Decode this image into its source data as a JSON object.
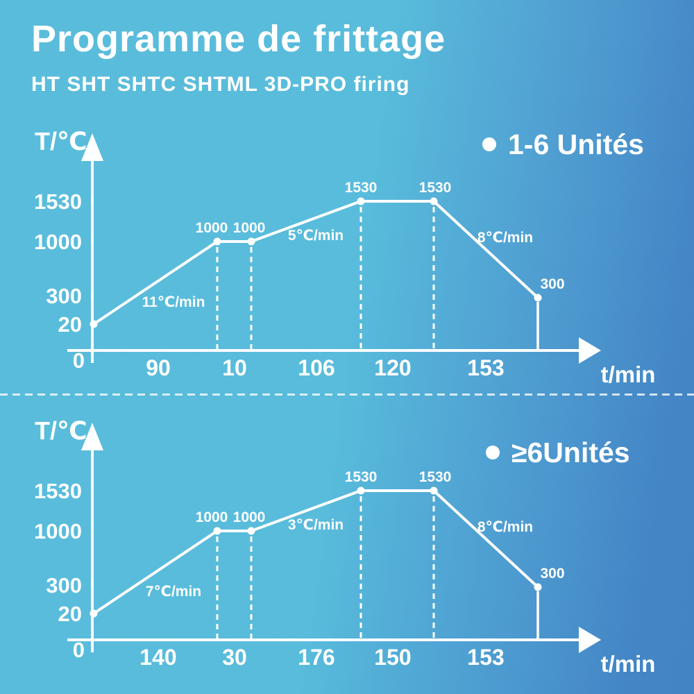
{
  "title": "Programme de frittage",
  "subtitle": "HT SHT SHTC SHTML 3D-PRO firing",
  "colors": {
    "background_left": "#58bcdb",
    "background_right": "#3a7ec2",
    "foreground": "#ffffff"
  },
  "chart_data": [
    {
      "type": "line",
      "legend": "1-6 Unités",
      "ylabel": "T/℃",
      "xlabel": "t/min",
      "y_ticks": [
        "1530",
        "1000",
        "300",
        "20",
        "0"
      ],
      "points_temp_c": [
        20,
        1000,
        1000,
        1530,
        1530,
        300
      ],
      "point_labels": [
        "",
        "1000",
        "1000",
        "1530",
        "1530",
        "300"
      ],
      "segment_durations_min": [
        "90",
        "10",
        "106",
        "120",
        "153"
      ],
      "ramp_rates": [
        "11℃/min",
        "5℃/min",
        "8℃/min"
      ],
      "grid": false,
      "legend_position": "top-right"
    },
    {
      "type": "line",
      "legend": "≥6Unités",
      "ylabel": "T/℃",
      "xlabel": "t/min",
      "y_ticks": [
        "1530",
        "1000",
        "300",
        "20",
        "0"
      ],
      "points_temp_c": [
        20,
        1000,
        1000,
        1530,
        1530,
        300
      ],
      "point_labels": [
        "",
        "1000",
        "1000",
        "1530",
        "1530",
        "300"
      ],
      "segment_durations_min": [
        "140",
        "30",
        "176",
        "150",
        "153"
      ],
      "ramp_rates": [
        "7℃/min",
        "3℃/min",
        "8℃/min"
      ],
      "grid": false,
      "legend_position": "top-right"
    }
  ]
}
